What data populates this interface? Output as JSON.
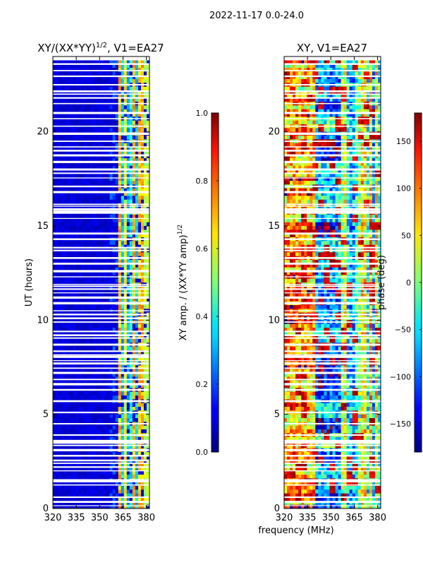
{
  "figure": {
    "suptitle": "2022-11-17 0.0-24.0",
    "shared_xlabel": "frequency (MHz)"
  },
  "chart_data": [
    {
      "type": "heatmap",
      "title_text": "XY/(XX*YY)",
      "title_sup": "1/2",
      "title_suffix": ", V1=EA27",
      "xlabel": "",
      "ylabel": "UT (hours)",
      "xlim": [
        320,
        382
      ],
      "ylim": [
        0,
        24
      ],
      "xticks": [
        320,
        335,
        350,
        365,
        380
      ],
      "yticks": [
        0,
        5,
        10,
        15,
        20
      ],
      "colorbar": {
        "label_text": "XY amp. / (XX*YY amp)",
        "label_sup": "1/2",
        "range": [
          0.0,
          1.0
        ],
        "ticks": [
          "0.0",
          "0.2",
          "0.4",
          "0.6",
          "0.8",
          "1.0"
        ],
        "tick_values": [
          0.0,
          0.2,
          0.4,
          0.6,
          0.8,
          1.0
        ]
      },
      "description_values": {
        "band_320_362_MHz": 0.08,
        "band_362_382_MHz": 0.45
      }
    },
    {
      "type": "heatmap",
      "title_text": "XY, V1=EA27",
      "xlabel": "frequency (MHz)",
      "ylabel": "",
      "xlim": [
        320,
        382
      ],
      "ylim": [
        0,
        24
      ],
      "xticks": [
        320,
        335,
        350,
        365,
        380
      ],
      "yticks": [
        0,
        5,
        10,
        15,
        20
      ],
      "colorbar": {
        "label_text": "phase (deg)",
        "range": [
          -180,
          180
        ],
        "ticks": [
          "−150",
          "−100",
          "−50",
          "0",
          "50",
          "100",
          "150"
        ],
        "tick_values": [
          -150,
          -100,
          -50,
          0,
          50,
          100,
          150
        ]
      }
    }
  ],
  "flagged_rows_hours": [
    0.15,
    0.35,
    0.6,
    1.25,
    1.45,
    1.5,
    2.0,
    2.2,
    2.4,
    2.55,
    2.8,
    3.1,
    3.35,
    3.5,
    3.6,
    3.9,
    4.5,
    5.1,
    5.7,
    6.3,
    6.6,
    6.85,
    7.2,
    7.45,
    7.7,
    7.85,
    8.05,
    8.15,
    8.35,
    8.7,
    9.05,
    9.2,
    9.4,
    9.9,
    10.1,
    10.3,
    10.5,
    10.9,
    11.2,
    11.45,
    11.65,
    11.8,
    11.9,
    12.3,
    12.6,
    13.0,
    13.3,
    13.7,
    13.85,
    14.3,
    14.6,
    15.4,
    15.7,
    15.8,
    15.9,
    16.05,
    16.15,
    16.8,
    17.1,
    17.55,
    17.8,
    18.0,
    18.4,
    18.75,
    19.0,
    19.2,
    19.5,
    19.9,
    20.3,
    20.7,
    21.0,
    21.5,
    21.8,
    22.0,
    22.15,
    22.5,
    22.95,
    23.25,
    23.6,
    23.85,
    23.95
  ]
}
